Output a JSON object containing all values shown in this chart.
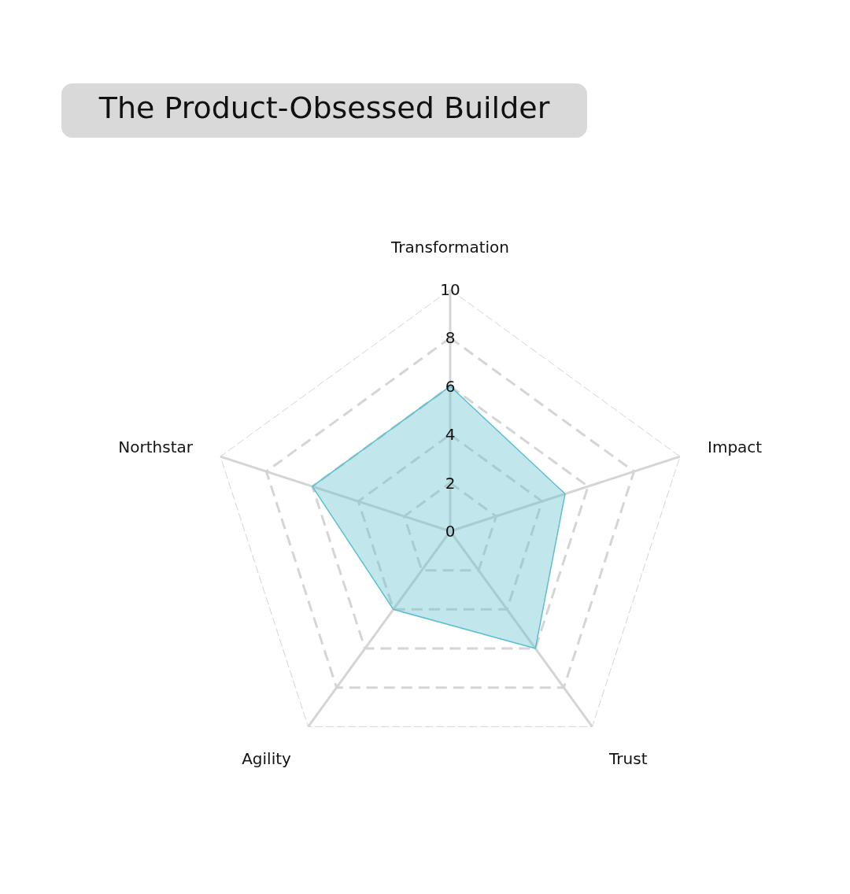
{
  "chart_data": {
    "type": "radar",
    "title": "The Product-Obsessed Builder",
    "categories": [
      "Transformation",
      "Impact",
      "Trust",
      "Agility",
      "Northstar"
    ],
    "series": [
      {
        "color": "#5bbfd0",
        "values": [
          6,
          5,
          6,
          4,
          6
        ]
      }
    ],
    "ylim": [
      0,
      10
    ],
    "yticks": [
      0,
      2,
      4,
      6,
      8,
      10
    ],
    "grid": true,
    "marker": "none"
  }
}
